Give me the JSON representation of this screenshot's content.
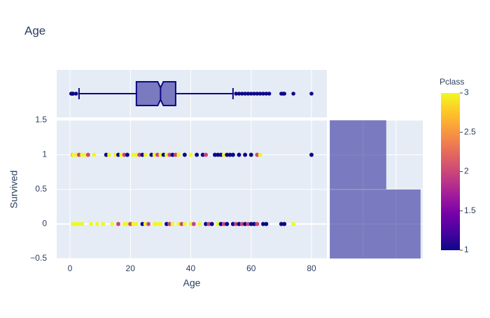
{
  "chart_data": {
    "type": "scatter",
    "title": "Age",
    "x_label": "Age",
    "y_label": "Survived",
    "xlim": [
      -4.4,
      85.1
    ],
    "xticks": [
      0,
      20,
      40,
      60,
      80
    ],
    "ylim": [
      -0.5,
      1.5
    ],
    "yticks": [
      {
        "value": -0.5,
        "label": "−0.5"
      },
      0,
      0.5,
      1,
      1.5
    ],
    "x": [
      0.9,
      1,
      2,
      3,
      4,
      5,
      6,
      8,
      12,
      13,
      15,
      16,
      17,
      18,
      19,
      21,
      22,
      23,
      24,
      25,
      27,
      28,
      29,
      30,
      31,
      32,
      33,
      34,
      35,
      36,
      38,
      40,
      42,
      44,
      45,
      48,
      49,
      50,
      51,
      52,
      53,
      54,
      56,
      58,
      60,
      62,
      63,
      80,
      1,
      2,
      3,
      4,
      7,
      9,
      11,
      14,
      16,
      18,
      19,
      20,
      21,
      22,
      24,
      25,
      26,
      28,
      29,
      30,
      32,
      33,
      34,
      36,
      37,
      38,
      40,
      41,
      43,
      45,
      46,
      47,
      49,
      50,
      51,
      52,
      54,
      55,
      56,
      57,
      58,
      59,
      60,
      61,
      62,
      64,
      65,
      70,
      71,
      74
    ],
    "y": [
      1,
      1,
      1,
      1,
      1,
      1,
      1,
      1,
      1,
      1,
      1,
      1,
      1,
      1,
      1,
      1,
      1,
      1,
      1,
      1,
      1,
      1,
      1,
      1,
      1,
      1,
      1,
      1,
      1,
      1,
      1,
      1,
      1,
      1,
      1,
      1,
      1,
      1,
      1,
      1,
      1,
      1,
      1,
      1,
      1,
      1,
      1,
      1,
      0,
      0,
      0,
      0,
      0,
      0,
      0,
      0,
      0,
      0,
      0,
      0,
      0,
      0,
      0,
      0,
      0,
      0,
      0,
      0,
      0,
      0,
      0,
      0,
      0,
      0,
      0,
      0,
      0,
      0,
      0,
      0,
      0,
      0,
      0,
      0,
      0,
      0,
      0,
      0,
      0,
      0,
      0,
      0,
      0,
      0,
      0,
      0,
      0,
      0
    ],
    "color_values": [
      2,
      3,
      3,
      2,
      3,
      3,
      2,
      3,
      1,
      3,
      3,
      1,
      3,
      2,
      1,
      3,
      3,
      2,
      1,
      3,
      1,
      3,
      2,
      3,
      1,
      3,
      2,
      1,
      2,
      3,
      1,
      3,
      1,
      1,
      2,
      1,
      1,
      1,
      3,
      1,
      1,
      1,
      1,
      1,
      1,
      2,
      3,
      1,
      3,
      3,
      3,
      3,
      3,
      3,
      3,
      3,
      2,
      3,
      3,
      2,
      3,
      3,
      1,
      3,
      2,
      3,
      3,
      3,
      1,
      2,
      3,
      3,
      2,
      3,
      3,
      2,
      3,
      1,
      2,
      1,
      3,
      1,
      2,
      1,
      1,
      2,
      1,
      2,
      1,
      2,
      1,
      1,
      2,
      1,
      1,
      1,
      1,
      3
    ],
    "colorscale": [
      "#0d0887",
      "#46039f",
      "#7201a8",
      "#9c179e",
      "#bd3786",
      "#d8576b",
      "#ed7953",
      "#fb9f3a",
      "#fdca26",
      "#f0f921"
    ],
    "colorbar": {
      "title": "Pclass",
      "lim": [
        1,
        3
      ],
      "ticks": [
        1,
        1.5,
        2,
        2.5,
        3
      ]
    },
    "marginal_x": {
      "type": "box",
      "q1": 22,
      "median": 30,
      "q3": 35,
      "lowerfence": 3,
      "upperfence": 54,
      "outliers": [
        0.4,
        0.7,
        0.8,
        0.9,
        1,
        2,
        55,
        56,
        57,
        58,
        59,
        60,
        61,
        62,
        63,
        64,
        65,
        66,
        70,
        70.5,
        71,
        74,
        80
      ],
      "color": "#0d0887"
    },
    "marginal_y": {
      "type": "histogram",
      "bins": [
        -0.5,
        0.5,
        1.5
      ],
      "counts": [
        549,
        342
      ],
      "xlim": [
        0,
        562
      ],
      "xticks": [
        0,
        200,
        400
      ],
      "color": "#0d0887"
    }
  }
}
